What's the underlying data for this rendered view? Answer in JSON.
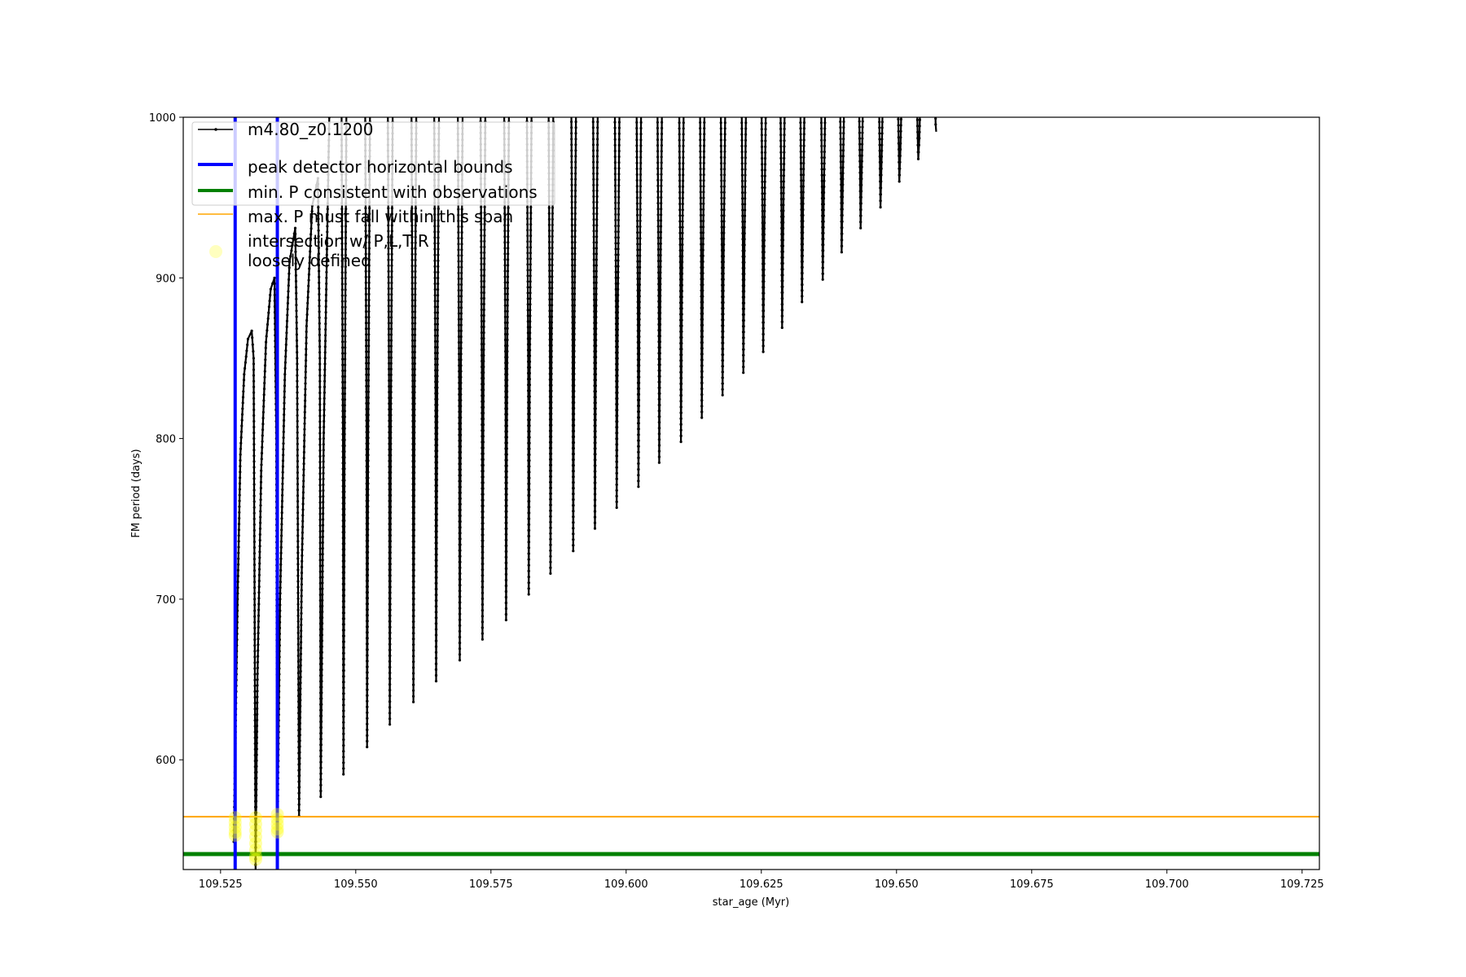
{
  "chart_data": {
    "type": "line",
    "title": "",
    "xlabel": "star_age (Myr)",
    "ylabel": "FM period (days)",
    "xlim": [
      109.5181,
      109.7282
    ],
    "ylim": [
      531.7,
      1000
    ],
    "xticks": [
      "109.525",
      "109.550",
      "109.575",
      "109.600",
      "109.625",
      "109.650",
      "109.675",
      "109.700",
      "109.725"
    ],
    "yticks": [
      "600",
      "700",
      "800",
      "900",
      "1000"
    ],
    "grid": false,
    "legend_position": "upper-left",
    "legend": [
      {
        "label": "m4.80_z0.1200",
        "color": "#000000",
        "style": "line-marker"
      },
      {
        "label": "peak detector horizontal bounds",
        "color": "#0000ff",
        "style": "thick-line"
      },
      {
        "label": "min. P consistent with observations",
        "color": "#008000",
        "style": "thick-line"
      },
      {
        "label": "max. P must fall within this span",
        "color": "#ffa500",
        "style": "thin-line"
      },
      {
        "label": "intersection w/ P,L,T,R\nloosely defined",
        "label_lines": [
          "intersection w/ P,L,T,R",
          "loosely defined"
        ],
        "color": "#ffff00",
        "style": "marker"
      }
    ],
    "series": [
      {
        "name": "m4.80_z0.1200",
        "color": "#000000",
        "points": [
          [
            109.52745,
            549
          ],
          [
            109.52815,
            700
          ],
          [
            109.52867,
            790
          ],
          [
            109.52937,
            840
          ],
          [
            109.53007,
            862
          ],
          [
            109.53077,
            867
          ],
          [
            109.53112,
            850
          ],
          [
            109.5313,
            700
          ],
          [
            109.53147,
            531
          ],
          [
            109.53182,
            650
          ],
          [
            109.53252,
            780
          ],
          [
            109.5334,
            860
          ],
          [
            109.53427,
            893
          ],
          [
            109.53497,
            900
          ],
          [
            109.53532,
            800
          ],
          [
            109.5355,
            549
          ],
          [
            109.53601,
            700
          ],
          [
            109.53689,
            840
          ],
          [
            109.53776,
            910
          ],
          [
            109.53881,
            931
          ],
          [
            109.53916,
            850
          ],
          [
            109.53951,
            565
          ],
          [
            109.54003,
            720
          ],
          [
            109.5409,
            870
          ],
          [
            109.54196,
            945
          ],
          [
            109.54301,
            962
          ],
          [
            109.54336,
            850
          ],
          [
            109.54353,
            577
          ],
          [
            109.54406,
            800
          ],
          [
            109.5451,
            1000
          ]
        ],
        "spike_minima": [
          [
            109.54773,
            591
          ],
          [
            109.5521,
            608
          ],
          [
            109.55629,
            622
          ],
          [
            109.56066,
            636
          ],
          [
            109.56486,
            649
          ],
          [
            109.56923,
            662
          ],
          [
            109.57343,
            675
          ],
          [
            109.5778,
            687
          ],
          [
            109.58199,
            703
          ],
          [
            109.58601,
            716
          ],
          [
            109.59021,
            730
          ],
          [
            109.59423,
            744
          ],
          [
            109.59825,
            757
          ],
          [
            109.60227,
            770
          ],
          [
            109.60612,
            785
          ],
          [
            109.61014,
            798
          ],
          [
            109.61399,
            813
          ],
          [
            109.61783,
            827
          ],
          [
            109.62168,
            841
          ],
          [
            109.62535,
            854
          ],
          [
            109.62885,
            869
          ],
          [
            109.63252,
            885
          ],
          [
            109.63636,
            899
          ],
          [
            109.63986,
            916
          ],
          [
            109.64336,
            931
          ],
          [
            109.64703,
            944
          ],
          [
            109.65052,
            960
          ],
          [
            109.65402,
            974
          ],
          [
            109.65734,
            991
          ]
        ]
      }
    ],
    "vertical_lines": {
      "color": "#0000ff",
      "x": [
        109.5277,
        109.5355
      ]
    },
    "hlines": [
      {
        "y": 541.3,
        "color": "#008000"
      },
      {
        "y": 564.6,
        "color": "#ffa500"
      }
    ],
    "intersections": {
      "color": "#ffff00",
      "clusters": [
        {
          "x": 109.5277,
          "y": [
            564,
            561,
            558,
            555,
            553
          ]
        },
        {
          "x": 109.5315,
          "y": [
            564,
            560,
            556,
            552,
            548,
            544,
            540,
            538
          ]
        },
        {
          "x": 109.5355,
          "y": [
            566,
            563,
            560,
            557,
            555
          ]
        }
      ]
    }
  }
}
